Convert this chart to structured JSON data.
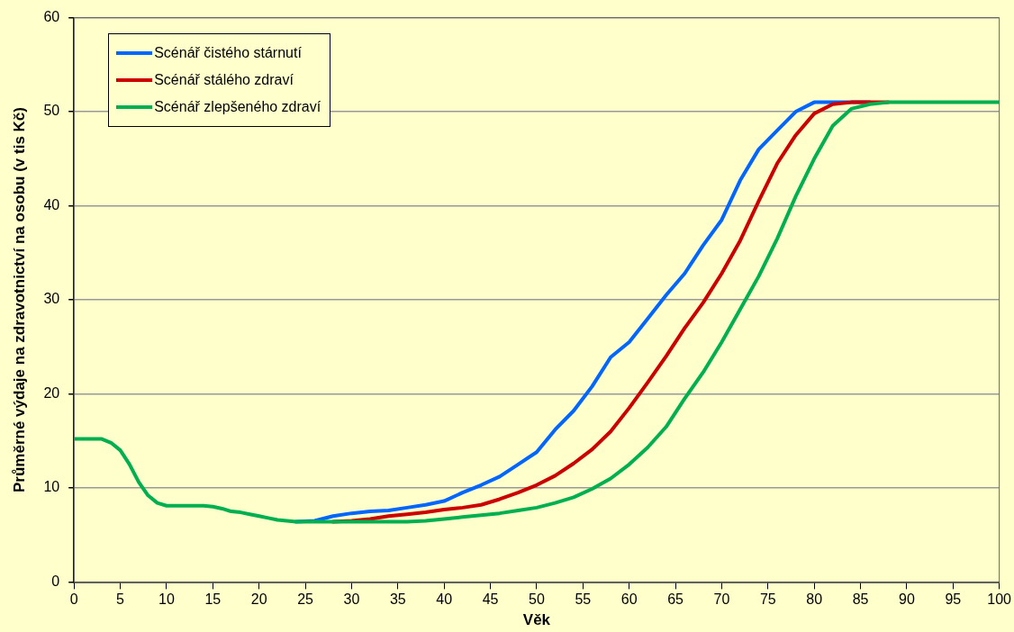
{
  "chart_data": {
    "type": "line",
    "xlabel": "Věk",
    "ylabel": "Průměrné výdaje na zdravotnictví na osobu (v tis Kč)",
    "x": [
      0,
      1,
      2,
      3,
      4,
      5,
      6,
      7,
      8,
      9,
      10,
      11,
      12,
      13,
      14,
      15,
      16,
      17,
      18,
      19,
      20,
      21,
      22,
      23,
      24,
      26,
      28,
      30,
      32,
      34,
      36,
      38,
      40,
      42,
      44,
      46,
      48,
      50,
      52,
      54,
      56,
      58,
      60,
      62,
      64,
      66,
      68,
      70,
      72,
      74,
      76,
      78,
      80,
      82,
      84,
      86,
      88,
      90,
      100
    ],
    "series": [
      {
        "name": "Scénář čistého stárnutí",
        "color": "#0066ff",
        "values": [
          null,
          null,
          null,
          null,
          null,
          null,
          null,
          null,
          null,
          null,
          null,
          null,
          null,
          null,
          null,
          null,
          null,
          null,
          null,
          null,
          null,
          null,
          null,
          null,
          6.4,
          6.5,
          7.0,
          7.3,
          7.5,
          7.6,
          7.9,
          8.2,
          8.6,
          9.5,
          10.3,
          11.2,
          12.5,
          13.8,
          16.2,
          18.2,
          20.8,
          23.9,
          25.5,
          28.0,
          30.5,
          32.8,
          35.8,
          38.5,
          42.7,
          46.0,
          48.0,
          50.0,
          51.0,
          51.0,
          51,
          51,
          null,
          null,
          null
        ]
      },
      {
        "name": "Scénář stálého zdraví",
        "color": "#cc0000",
        "values": [
          null,
          null,
          null,
          null,
          null,
          null,
          null,
          null,
          null,
          null,
          null,
          null,
          null,
          null,
          null,
          null,
          null,
          null,
          null,
          null,
          null,
          null,
          null,
          null,
          null,
          null,
          6.4,
          6.5,
          6.7,
          7.0,
          7.2,
          7.4,
          7.7,
          7.9,
          8.2,
          8.8,
          9.5,
          10.3,
          11.3,
          12.6,
          14.1,
          16.0,
          18.5,
          21.2,
          24.0,
          27.0,
          29.7,
          32.8,
          36.3,
          40.5,
          44.5,
          47.5,
          49.8,
          50.8,
          51,
          51,
          51,
          null,
          null
        ]
      },
      {
        "name": "Scénář zlepšeného zdraví",
        "color": "#00b050",
        "values": [
          15.2,
          15.2,
          15.2,
          15.2,
          14.8,
          14,
          12.5,
          10.6,
          9.2,
          8.4,
          8.1,
          8.1,
          8.1,
          8.1,
          8.1,
          8.0,
          7.8,
          7.5,
          7.4,
          7.2,
          7.0,
          6.8,
          6.6,
          6.5,
          6.4,
          6.4,
          6.4,
          6.4,
          6.4,
          6.4,
          6.4,
          6.5,
          6.7,
          6.9,
          7.1,
          7.3,
          7.6,
          7.9,
          8.4,
          9.0,
          9.9,
          11.0,
          12.5,
          14.3,
          16.5,
          19.5,
          22.3,
          25.5,
          29.0,
          32.5,
          36.5,
          41.0,
          45.0,
          48.5,
          50.3,
          50.8,
          51.0,
          51,
          51
        ]
      }
    ],
    "xlim": [
      0,
      100
    ],
    "xticks": [
      0,
      5,
      10,
      15,
      20,
      25,
      30,
      35,
      40,
      45,
      50,
      55,
      60,
      65,
      70,
      75,
      80,
      85,
      90,
      95,
      100
    ],
    "ylim": [
      0,
      60
    ],
    "yticks": [
      0,
      10,
      20,
      30,
      40,
      50,
      60
    ],
    "grid": "y",
    "legend": "top left",
    "marker": "none",
    "line_style": "solid"
  }
}
